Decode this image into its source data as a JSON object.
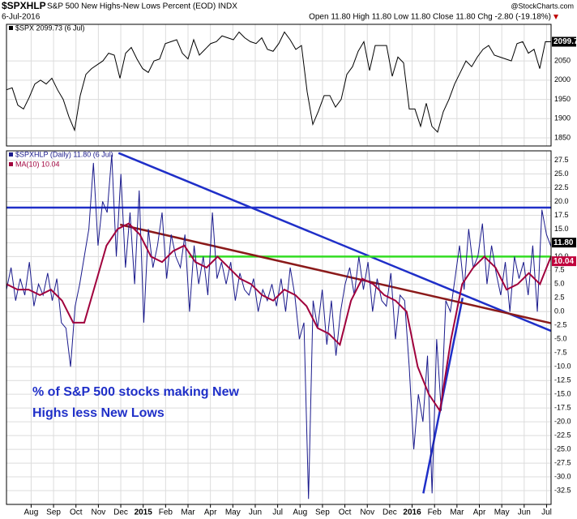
{
  "header": {
    "symbol": "$SPXHLP",
    "title": "S&P 500 New Highs-New Lows Percent (EOD) INDX",
    "source": "@StockCharts.com",
    "date": "6-Jul-2016",
    "quote": "Open 11.80 High 11.80 Low 11.80 Close 11.80 Chg -2.80 (-19.18%)"
  },
  "x_axis": {
    "xlim": [
      -1.1,
      23.2
    ],
    "xticks": [
      {
        "value": 0,
        "label": "Aug"
      },
      {
        "value": 1,
        "label": "Sep"
      },
      {
        "value": 2,
        "label": "Oct"
      },
      {
        "value": 3,
        "label": "Nov"
      },
      {
        "value": 4,
        "label": "Dec"
      },
      {
        "value": 5,
        "label": "2015"
      },
      {
        "value": 6,
        "label": "Feb"
      },
      {
        "value": 7,
        "label": "Mar"
      },
      {
        "value": 8,
        "label": "Apr"
      },
      {
        "value": 9,
        "label": "May"
      },
      {
        "value": 10,
        "label": "Jun"
      },
      {
        "value": 11,
        "label": "Jul"
      },
      {
        "value": 12,
        "label": "Aug"
      },
      {
        "value": 13,
        "label": "Sep"
      },
      {
        "value": 14,
        "label": "Oct"
      },
      {
        "value": 15,
        "label": "Nov"
      },
      {
        "value": 16,
        "label": "Dec"
      },
      {
        "value": 17,
        "label": "2016"
      },
      {
        "value": 18,
        "label": "Feb"
      },
      {
        "value": 19,
        "label": "Mar"
      },
      {
        "value": 20,
        "label": "Apr"
      },
      {
        "value": 21,
        "label": "May"
      },
      {
        "value": 22,
        "label": "Jun"
      },
      {
        "value": 23,
        "label": "Jul"
      }
    ],
    "grid": true
  },
  "chart_data": [
    {
      "type": "line",
      "grid": true,
      "ylim": [
        1829,
        2145
      ],
      "yticks": [
        2050,
        2000,
        1950,
        1900,
        1850
      ],
      "series": [
        {
          "name": "$SPX 2099.73 (6 Jul)",
          "color": "#000000",
          "values": [
            1975,
            1980,
            1935,
            1925,
            1955,
            1990,
            2000,
            1990,
            2005,
            1975,
            1950,
            1905,
            1870,
            1960,
            2015,
            2030,
            2040,
            2050,
            2070,
            2065,
            2005,
            2070,
            2085,
            2055,
            2030,
            2020,
            2050,
            2055,
            2095,
            2100,
            2105,
            2070,
            2055,
            2105,
            2065,
            2080,
            2095,
            2100,
            2115,
            2110,
            2105,
            2125,
            2110,
            2100,
            2095,
            2110,
            2080,
            2075,
            2095,
            2125,
            2105,
            2080,
            2090,
            1970,
            1885,
            1920,
            1960,
            1960,
            1930,
            1950,
            2015,
            2035,
            2075,
            2100,
            2025,
            2090,
            2090,
            2090,
            2010,
            2060,
            2045,
            1925,
            1925,
            1880,
            1940,
            1880,
            1865,
            1918,
            1950,
            1990,
            2020,
            2050,
            2035,
            2060,
            2080,
            2090,
            2065,
            2060,
            2055,
            2050,
            2095,
            2100,
            2070,
            2080,
            2030,
            2100,
            2099.73
          ]
        }
      ]
    },
    {
      "type": "line",
      "grid": true,
      "ylim": [
        -35,
        29.2
      ],
      "yticks": [
        27.5,
        {
          "value": 25,
          "label": "25.0"
        },
        22.5,
        {
          "value": 20,
          "label": "20.0"
        },
        17.5,
        {
          "value": 15,
          "label": "15.0"
        },
        12.5,
        {
          "value": 10,
          "label": "10.0"
        },
        7.5,
        {
          "value": 5,
          "label": "5.0"
        },
        2.5,
        {
          "value": 0,
          "label": "0.0"
        },
        -2.5,
        {
          "value": -5,
          "label": "-5.0"
        },
        -7.5,
        {
          "value": -10,
          "label": "-10.0"
        },
        -12.5,
        {
          "value": -15,
          "label": "-15.0"
        },
        -17.5,
        {
          "value": -20,
          "label": "-20.0"
        },
        -22.5,
        {
          "value": -25,
          "label": "-25.0"
        },
        -27.5,
        {
          "value": -30,
          "label": "-30.0"
        },
        -32.5
      ],
      "series": [
        {
          "name": "$SPXHLP (Daily) 11.80 (6 Jul)",
          "color": "#1a1a8c",
          "last_label": "11.80",
          "values": [
            4,
            8,
            2,
            6,
            3,
            9,
            1,
            5,
            3,
            7,
            2,
            6,
            -2,
            -3,
            -10,
            1,
            5,
            10,
            15,
            27,
            12,
            20,
            18,
            28.5,
            10,
            25,
            8,
            18,
            5,
            22,
            -2,
            15,
            8,
            12,
            18,
            6,
            14,
            10,
            8,
            14,
            0,
            12,
            5,
            10,
            3,
            18,
            6,
            9,
            5,
            9,
            2,
            7,
            4,
            3,
            6,
            0,
            4,
            2,
            5,
            1,
            6,
            0,
            8,
            3,
            -5,
            -2,
            -34,
            2,
            -3,
            4,
            -6,
            2,
            -8,
            0,
            5,
            8,
            3,
            10,
            4,
            9,
            0,
            6,
            2,
            1,
            7,
            -5,
            3,
            2,
            -10,
            -25,
            -15,
            -20,
            -8,
            -33,
            -5,
            -18,
            2,
            0,
            6,
            12,
            4,
            15,
            8,
            10,
            16,
            5,
            12,
            7,
            3,
            9,
            0,
            10,
            6,
            9,
            3,
            12,
            0,
            18.5,
            14,
            11.8
          ]
        },
        {
          "name": "MA(10) 10.04",
          "color": "#a0003c",
          "values": [
            5,
            4,
            4,
            3,
            4,
            2,
            -2,
            -2,
            5,
            12,
            15,
            16,
            14,
            10,
            9,
            11,
            12,
            9,
            8,
            10,
            8,
            6,
            5,
            3,
            2,
            4,
            3,
            1,
            -3,
            -4,
            -6,
            2,
            6,
            5,
            3,
            2,
            0,
            -10,
            -15,
            -18,
            -5,
            5,
            8,
            10,
            8,
            4,
            5,
            7,
            5,
            10.04
          ]
        }
      ],
      "trendlines": [
        {
          "color": "#1f2fc8",
          "x": [
            3.9,
            23.2
          ],
          "y": [
            28.8,
            -3.5
          ]
        },
        {
          "color": "#1f2fc8",
          "x": [
            17.5,
            19.25
          ],
          "y": [
            -33,
            2.5
          ]
        },
        {
          "color": "#1f2fc8",
          "x": [
            -1.1,
            23.2
          ],
          "y": [
            18.9,
            18.9
          ]
        },
        {
          "color": "#33dd22",
          "x": [
            7.04,
            23.2
          ],
          "y": [
            10,
            10
          ]
        },
        {
          "color": "#8b1a1a",
          "x": [
            3.97,
            23.2
          ],
          "y": [
            15.8,
            -2.1
          ]
        }
      ],
      "annotation": [
        "% of S&P 500 stocks making New",
        "Highs less New Lows"
      ]
    }
  ]
}
